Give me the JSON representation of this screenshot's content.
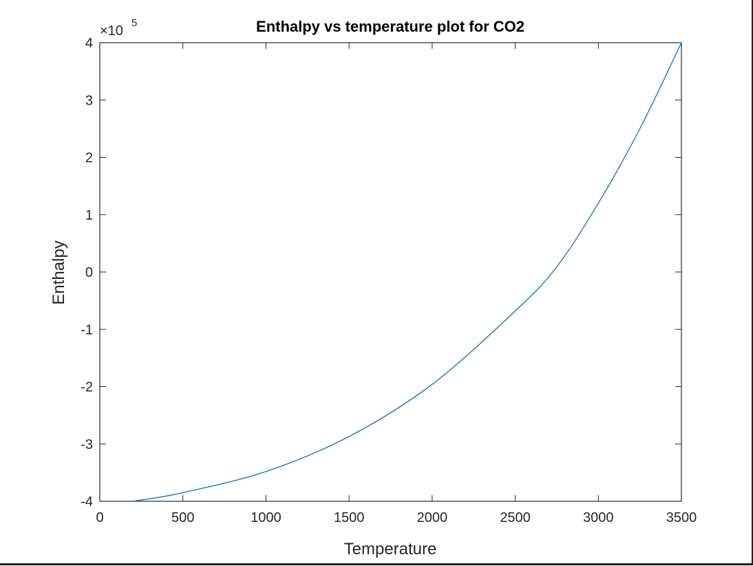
{
  "chart_data": {
    "type": "line",
    "title": "Enthalpy vs temperature plot for CO2",
    "xlabel": "Temperature",
    "ylabel": "Enthalpy",
    "y_exponent_base": "×10",
    "y_exponent_power": "5",
    "xlim": [
      0,
      3500
    ],
    "ylim": [
      -4,
      4
    ],
    "xticks": [
      0,
      500,
      1000,
      1500,
      2000,
      2500,
      3000,
      3500
    ],
    "yticks": [
      -4,
      -3,
      -2,
      -1,
      0,
      1,
      2,
      3,
      4
    ],
    "grid": false,
    "line_color": "#0072BD",
    "series": [
      {
        "x": [
          200,
          500,
          1000,
          1500,
          2000,
          2500,
          2750,
          3000,
          3250,
          3500
        ],
        "y": [
          -4.0,
          -3.85,
          -3.48,
          -2.87,
          -1.96,
          -0.68,
          0.09,
          1.2,
          2.5,
          4.0
        ]
      }
    ]
  }
}
